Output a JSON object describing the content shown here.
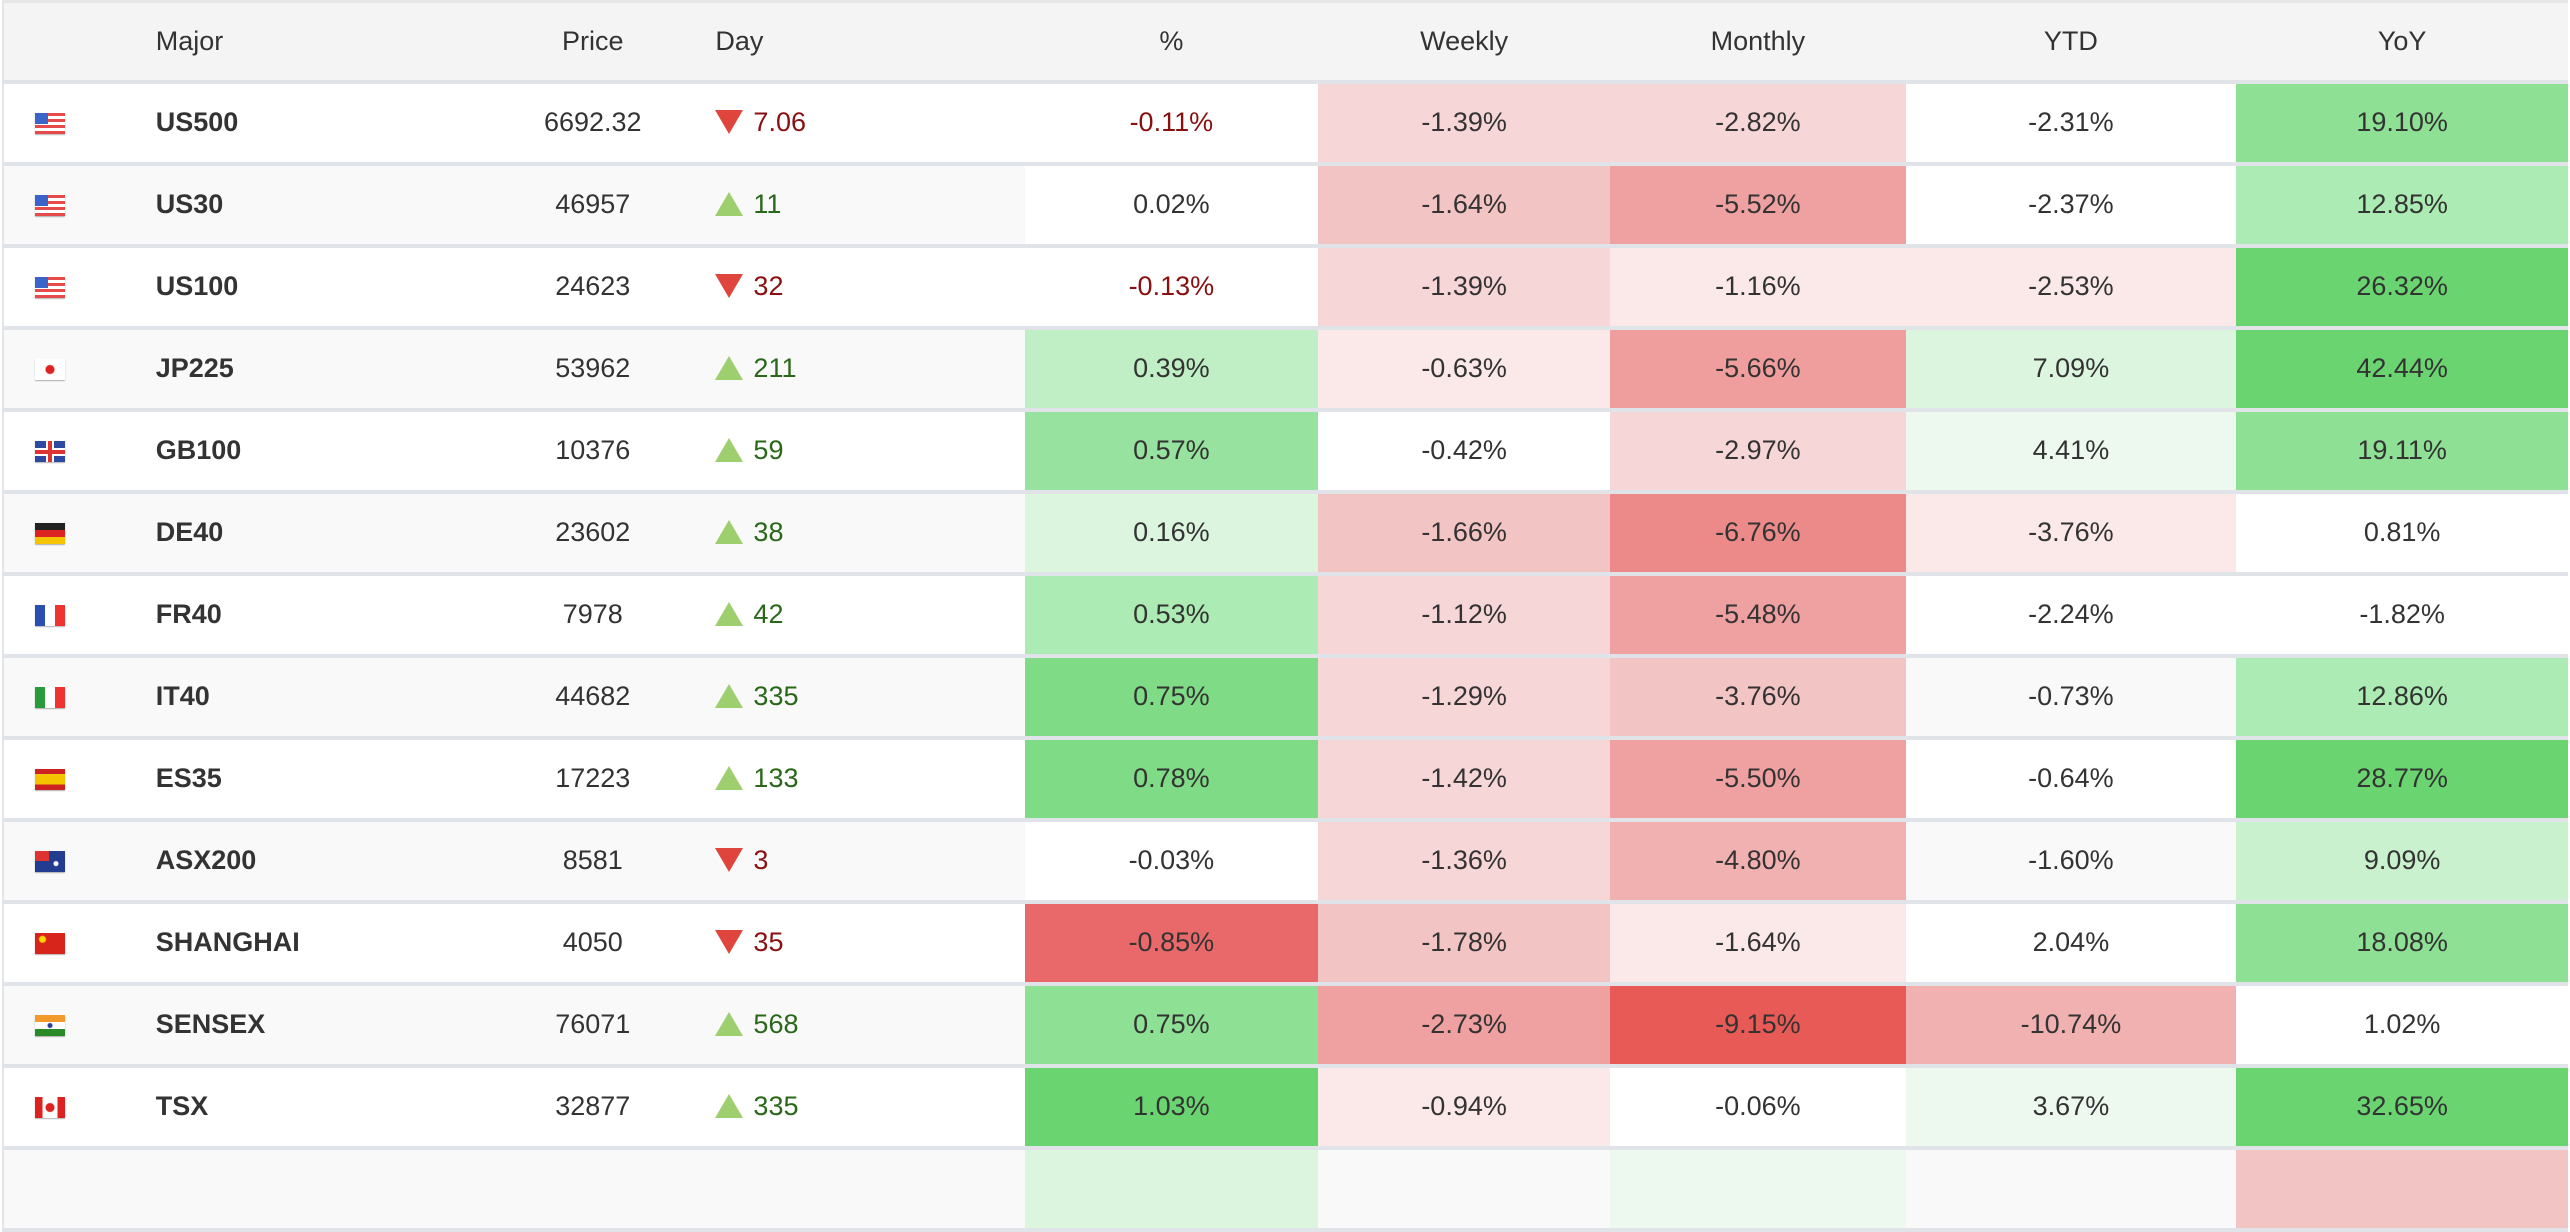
{
  "header": {
    "major": "Major",
    "price": "Price",
    "day": "Day",
    "pct": "%",
    "weekly": "Weekly",
    "monthly": "Monthly",
    "ytd": "YTD",
    "yoy": "YoY"
  },
  "arrow_colors": {
    "down": "#e0453d",
    "up": "#9dcf6e"
  },
  "rows": [
    {
      "flag": "us",
      "name": "US500",
      "price": "6692.32",
      "dir": "down",
      "day": "7.06",
      "pct": "-0.11%",
      "weekly": "-1.39%",
      "monthly": "-2.82%",
      "ytd": "-2.31%",
      "yoy": "19.10%",
      "bg": {
        "pct": "",
        "weekly": "#f7d6d7",
        "monthly": "#f7d6d7",
        "ytd": "",
        "yoy": "#8ee095"
      }
    },
    {
      "flag": "us",
      "name": "US30",
      "price": "46957",
      "dir": "up",
      "day": "11",
      "pct": "0.02%",
      "weekly": "-1.64%",
      "monthly": "-5.52%",
      "ytd": "-2.37%",
      "yoy": "12.85%",
      "bg": {
        "pct": "#ffffff",
        "weekly": "#f3c4c4",
        "monthly": "#efa0a1",
        "ytd": "#ffffff",
        "yoy": "#acebb3"
      }
    },
    {
      "flag": "us",
      "name": "US100",
      "price": "24623",
      "dir": "down",
      "day": "32",
      "pct": "-0.13%",
      "weekly": "-1.39%",
      "monthly": "-1.16%",
      "ytd": "-2.53%",
      "yoy": "26.32%",
      "bg": {
        "pct": "",
        "weekly": "#f7d6d7",
        "monthly": "#fbe9e9",
        "ytd": "#fbe9e9",
        "yoy": "#6ad570"
      }
    },
    {
      "flag": "jp",
      "name": "JP225",
      "price": "53962",
      "dir": "up",
      "day": "211",
      "pct": "0.39%",
      "weekly": "-0.63%",
      "monthly": "-5.66%",
      "ytd": "7.09%",
      "yoy": "42.44%",
      "bg": {
        "pct": "#c0efc5",
        "weekly": "#fbe9e9",
        "monthly": "#ef9d9d",
        "ytd": "#dcf5df",
        "yoy": "#6ad570"
      }
    },
    {
      "flag": "gb",
      "name": "GB100",
      "price": "10376",
      "dir": "up",
      "day": "59",
      "pct": "0.57%",
      "weekly": "-0.42%",
      "monthly": "-2.97%",
      "ytd": "4.41%",
      "yoy": "19.11%",
      "bg": {
        "pct": "#97e29e",
        "weekly": "#ffffff",
        "monthly": "#f7d6d7",
        "ytd": "#edf9ee",
        "yoy": "#8ee095"
      }
    },
    {
      "flag": "de",
      "name": "DE40",
      "price": "23602",
      "dir": "up",
      "day": "38",
      "pct": "0.16%",
      "weekly": "-1.66%",
      "monthly": "-6.76%",
      "ytd": "-3.76%",
      "yoy": "0.81%",
      "bg": {
        "pct": "#dcf5df",
        "weekly": "#f3c4c4",
        "monthly": "#ec8a8a",
        "ytd": "#fbe9e9",
        "yoy": "#ffffff"
      }
    },
    {
      "flag": "fr",
      "name": "FR40",
      "price": "7978",
      "dir": "up",
      "day": "42",
      "pct": "0.53%",
      "weekly": "-1.12%",
      "monthly": "-5.48%",
      "ytd": "-2.24%",
      "yoy": "-1.82%",
      "bg": {
        "pct": "#acebb3",
        "weekly": "#f7d6d7",
        "monthly": "#efa0a1",
        "ytd": "#ffffff",
        "yoy": "#ffffff"
      }
    },
    {
      "flag": "it",
      "name": "IT40",
      "price": "44682",
      "dir": "up",
      "day": "335",
      "pct": "0.75%",
      "weekly": "-1.29%",
      "monthly": "-3.76%",
      "ytd": "-0.73%",
      "yoy": "12.86%",
      "bg": {
        "pct": "#7fdb86",
        "weekly": "#f7d6d7",
        "monthly": "#f3c4c4",
        "ytd": "",
        "yoy": "#acebb3"
      }
    },
    {
      "flag": "es",
      "name": "ES35",
      "price": "17223",
      "dir": "up",
      "day": "133",
      "pct": "0.78%",
      "weekly": "-1.42%",
      "monthly": "-5.50%",
      "ytd": "-0.64%",
      "yoy": "28.77%",
      "bg": {
        "pct": "#7fdb86",
        "weekly": "#f7d6d7",
        "monthly": "#efa0a1",
        "ytd": "#ffffff",
        "yoy": "#6ad570"
      }
    },
    {
      "flag": "au",
      "name": "ASX200",
      "price": "8581",
      "dir": "down",
      "day": "3",
      "pct": "-0.03%",
      "weekly": "-1.36%",
      "monthly": "-4.80%",
      "ytd": "-1.60%",
      "yoy": "9.09%",
      "bg": {
        "pct": "#ffffff",
        "weekly": "#f7d6d7",
        "monthly": "#f1b1b1",
        "ytd": "",
        "yoy": "#c9f1cd"
      }
    },
    {
      "flag": "cn",
      "name": "SHANGHAI",
      "price": "4050",
      "dir": "down",
      "day": "35",
      "pct": "-0.85%",
      "weekly": "-1.78%",
      "monthly": "-1.64%",
      "ytd": "2.04%",
      "yoy": "18.08%",
      "bg": {
        "pct": "#e9696a",
        "weekly": "#f3c4c4",
        "monthly": "#fbe9e9",
        "ytd": "#ffffff",
        "yoy": "#8ee095"
      }
    },
    {
      "flag": "in",
      "name": "SENSEX",
      "price": "76071",
      "dir": "up",
      "day": "568",
      "pct": "0.75%",
      "weekly": "-2.73%",
      "monthly": "-9.15%",
      "ytd": "-10.74%",
      "yoy": "1.02%",
      "bg": {
        "pct": "#8ee095",
        "weekly": "#efa0a1",
        "monthly": "#e85a56",
        "ytd": "#f1b1b1",
        "yoy": "#ffffff"
      }
    },
    {
      "flag": "ca",
      "name": "TSX",
      "price": "32877",
      "dir": "up",
      "day": "335",
      "pct": "1.03%",
      "weekly": "-0.94%",
      "monthly": "-0.06%",
      "ytd": "3.67%",
      "yoy": "32.65%",
      "bg": {
        "pct": "#6ad570",
        "weekly": "#fbe9e9",
        "monthly": "#ffffff",
        "ytd": "#edf9ee",
        "yoy": "#6ad570"
      }
    }
  ]
}
